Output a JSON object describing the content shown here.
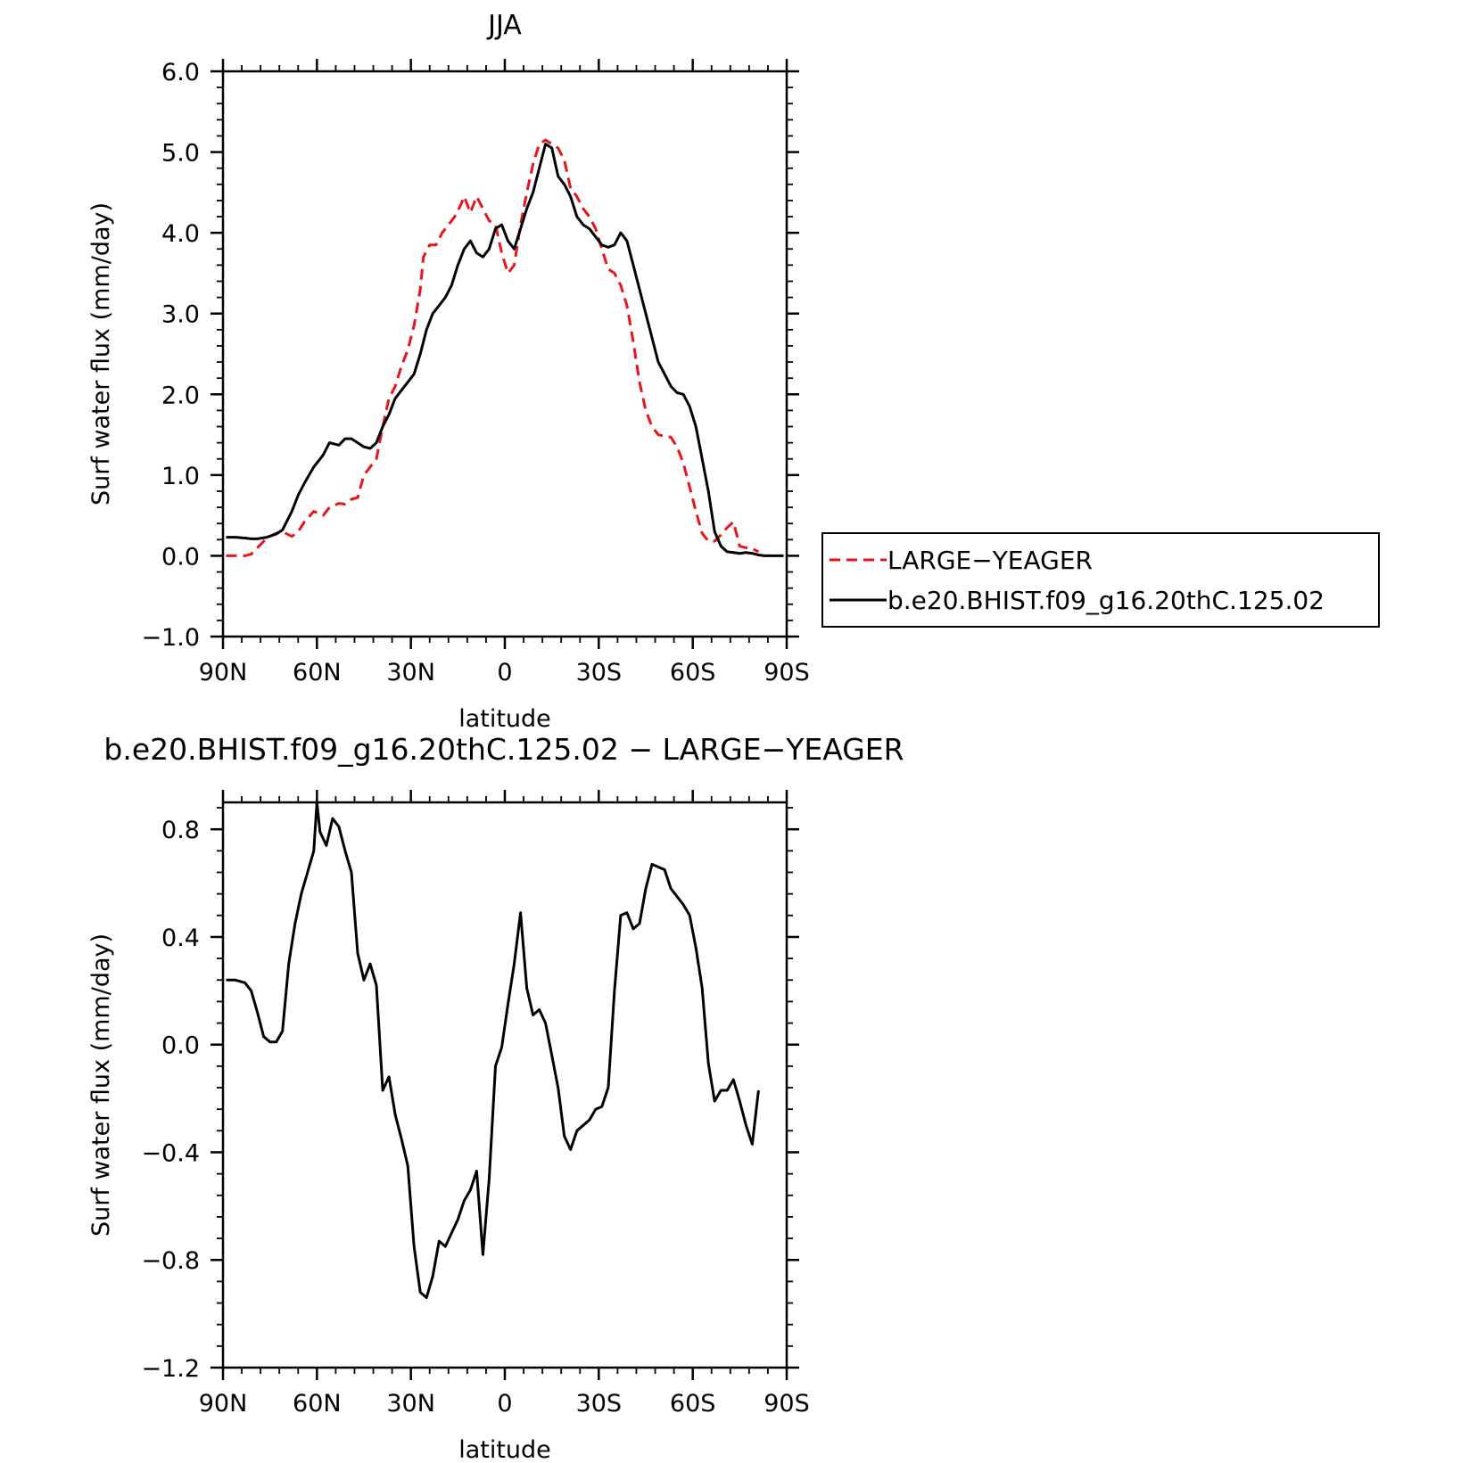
{
  "chart_data": [
    {
      "type": "line",
      "title": "JJA",
      "xlabel": "latitude",
      "ylabel": "Surf water flux (mm/day)",
      "xlim": [
        -90,
        90
      ],
      "ylim": [
        -1.0,
        6.0
      ],
      "x_ticks": [
        -90,
        -60,
        -30,
        0,
        30,
        60,
        90
      ],
      "x_tick_labels": [
        "90N",
        "60N",
        "30N",
        "0",
        "30S",
        "60S",
        "90S"
      ],
      "y_ticks": [
        -1.0,
        0.0,
        1.0,
        2.0,
        3.0,
        4.0,
        5.0,
        6.0
      ],
      "y_tick_labels": [
        "−1.0",
        "0.0",
        "1.0",
        "2.0",
        "3.0",
        "4.0",
        "5.0",
        "6.0"
      ],
      "grid": false,
      "legend": {
        "position": "right-middle"
      },
      "series": [
        {
          "name": "LARGE−YEAGER",
          "color": "#e8141c",
          "dash": "dashed",
          "x": [
            -89,
            -86,
            -83,
            -81,
            -79,
            -76,
            -73,
            -71,
            -68,
            -66,
            -64,
            -61,
            -58,
            -56,
            -53,
            -51,
            -49,
            -47,
            -45,
            -43,
            -41,
            -39,
            -37,
            -35,
            -33,
            -31,
            -29,
            -27,
            -26,
            -24,
            -22,
            -20,
            -18,
            -16,
            -14,
            -13,
            -11,
            -9,
            -7,
            -5,
            -3,
            -1,
            1,
            3,
            5,
            7,
            9,
            11,
            13,
            15,
            17,
            19,
            21,
            23,
            25,
            27,
            29,
            31,
            33,
            35,
            37,
            39,
            41,
            43,
            45,
            47,
            49,
            51,
            53,
            55,
            57,
            59,
            61,
            63,
            65,
            67,
            69,
            71,
            73,
            75,
            77,
            79,
            81
          ],
          "y": [
            0.0,
            0.0,
            0.0,
            0.02,
            0.1,
            0.22,
            0.28,
            0.3,
            0.24,
            0.3,
            0.42,
            0.55,
            0.5,
            0.6,
            0.65,
            0.64,
            0.7,
            0.72,
            1.0,
            1.1,
            1.2,
            1.6,
            1.95,
            2.1,
            2.35,
            2.55,
            2.85,
            3.3,
            3.7,
            3.85,
            3.85,
            4.0,
            4.1,
            4.2,
            4.35,
            4.45,
            4.25,
            4.45,
            4.3,
            4.15,
            4.1,
            3.75,
            3.5,
            3.6,
            4.1,
            4.5,
            4.85,
            5.1,
            5.15,
            5.1,
            5.05,
            4.9,
            4.55,
            4.45,
            4.3,
            4.2,
            4.05,
            3.8,
            3.55,
            3.5,
            3.35,
            3.1,
            2.65,
            2.15,
            1.8,
            1.6,
            1.5,
            1.48,
            1.47,
            1.35,
            1.15,
            0.85,
            0.55,
            0.28,
            0.18,
            0.18,
            0.26,
            0.35,
            0.42,
            0.12,
            0.1,
            0.09,
            0.05
          ]
        },
        {
          "name": "b.e20.BHIST.f09_g16.20thC.125.02",
          "color": "#000000",
          "dash": "solid",
          "x": [
            -89,
            -86,
            -83,
            -81,
            -79,
            -76,
            -73,
            -71,
            -68,
            -66,
            -64,
            -61,
            -58,
            -56,
            -53,
            -51,
            -49,
            -47,
            -45,
            -43,
            -41,
            -39,
            -37,
            -35,
            -33,
            -31,
            -29,
            -27,
            -25,
            -23,
            -21,
            -19,
            -17,
            -15,
            -13,
            -11,
            -9,
            -7,
            -5,
            -3,
            -1,
            1,
            3,
            5,
            7,
            9,
            11,
            13,
            15,
            17,
            19,
            21,
            23,
            25,
            27,
            29,
            31,
            33,
            35,
            37,
            39,
            41,
            43,
            45,
            47,
            49,
            51,
            53,
            55,
            57,
            59,
            61,
            63,
            65,
            67,
            69,
            71,
            73,
            75,
            77,
            79,
            81,
            83,
            85,
            87,
            89
          ],
          "y": [
            0.23,
            0.23,
            0.22,
            0.21,
            0.21,
            0.23,
            0.27,
            0.32,
            0.55,
            0.75,
            0.9,
            1.1,
            1.25,
            1.4,
            1.37,
            1.45,
            1.45,
            1.4,
            1.35,
            1.33,
            1.4,
            1.6,
            1.75,
            1.95,
            2.05,
            2.15,
            2.25,
            2.5,
            2.8,
            3.0,
            3.1,
            3.2,
            3.35,
            3.6,
            3.8,
            3.9,
            3.75,
            3.7,
            3.8,
            4.05,
            4.1,
            3.9,
            3.8,
            4.05,
            4.3,
            4.5,
            4.8,
            5.1,
            5.05,
            4.7,
            4.6,
            4.45,
            4.2,
            4.1,
            4.05,
            3.95,
            3.85,
            3.82,
            3.85,
            4.0,
            3.9,
            3.6,
            3.3,
            3.0,
            2.7,
            2.4,
            2.25,
            2.1,
            2.02,
            2.0,
            1.85,
            1.6,
            1.2,
            0.8,
            0.3,
            0.12,
            0.05,
            0.04,
            0.03,
            0.04,
            0.03,
            0.01,
            0.0,
            0.0,
            0.0,
            0.0
          ]
        }
      ]
    },
    {
      "type": "line",
      "title": "b.e20.BHIST.f09_g16.20thC.125.02 − LARGE−YEAGER",
      "xlabel": "latitude",
      "ylabel": "Surf water flux (mm/day)",
      "xlim": [
        -90,
        90
      ],
      "ylim": [
        -1.2,
        0.9
      ],
      "x_ticks": [
        -90,
        -60,
        -30,
        0,
        30,
        60,
        90
      ],
      "x_tick_labels": [
        "90N",
        "60N",
        "30N",
        "0",
        "30S",
        "60S",
        "90S"
      ],
      "y_ticks": [
        -1.2,
        -0.8,
        -0.4,
        0.0,
        0.4,
        0.8
      ],
      "y_tick_labels": [
        "−1.2",
        "−0.8",
        "−0.4",
        "0.0",
        "0.4",
        "0.8"
      ],
      "grid": false,
      "series": [
        {
          "color": "#000000",
          "dash": "solid",
          "x": [
            -89,
            -86,
            -83,
            -81,
            -79,
            -77,
            -75,
            -73,
            -71,
            -69,
            -67,
            -65,
            -63,
            -61,
            -60,
            -59,
            -57,
            -55,
            -53,
            -51,
            -49,
            -47,
            -45,
            -43,
            -41,
            -39,
            -37,
            -35,
            -33,
            -31,
            -29,
            -27,
            -25,
            -23,
            -21,
            -19,
            -17,
            -15,
            -13,
            -11,
            -9,
            -7,
            -5,
            -3,
            -1,
            1,
            3,
            5,
            7,
            9,
            11,
            13,
            15,
            17,
            19,
            21,
            23,
            25,
            27,
            29,
            31,
            33,
            35,
            37,
            39,
            41,
            43,
            45,
            47,
            49,
            51,
            53,
            55,
            57,
            59,
            61,
            63,
            65,
            67,
            69,
            71,
            73,
            75,
            77,
            79,
            81
          ],
          "y": [
            0.24,
            0.24,
            0.23,
            0.2,
            0.12,
            0.03,
            0.01,
            0.01,
            0.05,
            0.3,
            0.45,
            0.56,
            0.64,
            0.72,
            0.9,
            0.79,
            0.74,
            0.84,
            0.81,
            0.72,
            0.64,
            0.34,
            0.24,
            0.3,
            0.22,
            -0.17,
            -0.12,
            -0.26,
            -0.35,
            -0.45,
            -0.75,
            -0.92,
            -0.94,
            -0.86,
            -0.73,
            -0.75,
            -0.7,
            -0.65,
            -0.58,
            -0.54,
            -0.47,
            -0.78,
            -0.5,
            -0.08,
            -0.01,
            0.15,
            0.3,
            0.49,
            0.21,
            0.11,
            0.13,
            0.08,
            -0.04,
            -0.16,
            -0.34,
            -0.39,
            -0.32,
            -0.3,
            -0.28,
            -0.24,
            -0.23,
            -0.16,
            0.2,
            0.48,
            0.49,
            0.43,
            0.45,
            0.58,
            0.67,
            0.66,
            0.65,
            0.58,
            0.55,
            0.52,
            0.48,
            0.36,
            0.21,
            -0.07,
            -0.21,
            -0.17,
            -0.17,
            -0.13,
            -0.21,
            -0.3,
            -0.37,
            -0.17
          ]
        }
      ]
    }
  ]
}
